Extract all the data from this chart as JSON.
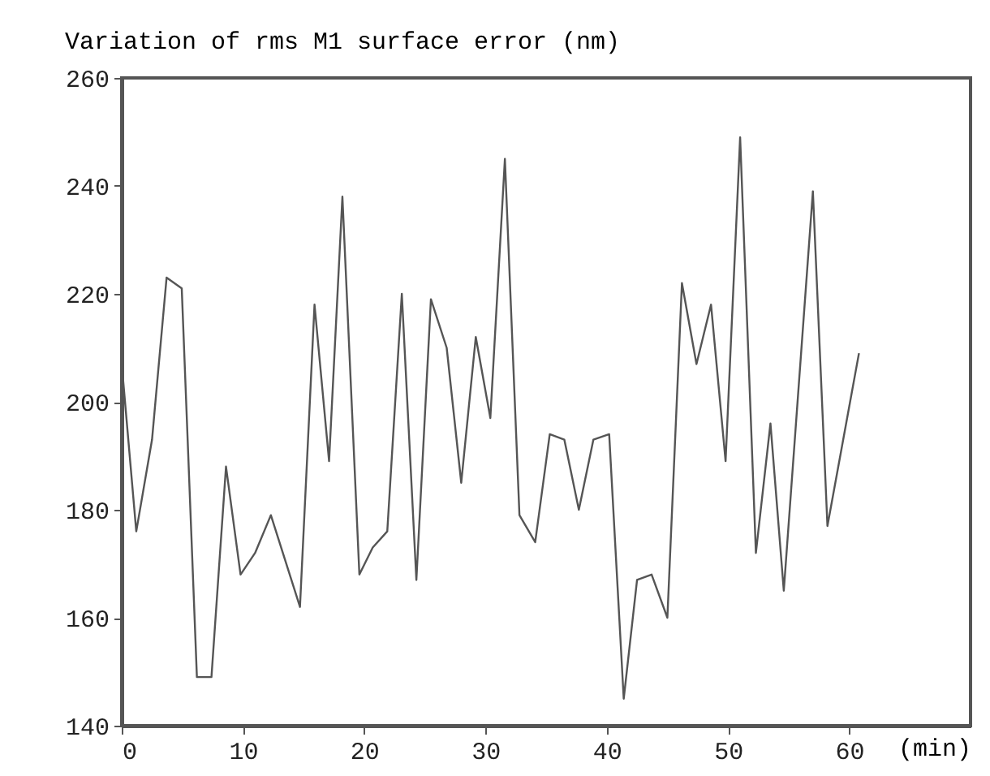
{
  "chart_data": {
    "type": "line",
    "title": "Variation of rms M1 surface error (nm)",
    "xlabel": "(min)",
    "x": [
      0,
      1.2,
      2.5,
      3.7,
      4.95,
      6.2,
      7.4,
      8.6,
      9.8,
      11.0,
      12.3,
      14.7,
      15.9,
      17.1,
      18.2,
      19.6,
      20.7,
      21.9,
      23.1,
      24.3,
      25.5,
      26.8,
      28.0,
      29.2,
      30.4,
      31.6,
      32.8,
      34.1,
      35.3,
      36.5,
      37.7,
      38.9,
      40.2,
      41.4,
      42.5,
      43.7,
      45.0,
      46.2,
      47.4,
      48.6,
      49.8,
      51.0,
      52.3,
      53.5,
      54.6,
      57.0,
      58.2,
      60.8
    ],
    "series": [
      {
        "color": "#555555",
        "values": [
          207,
          176,
          193,
          223,
          221,
          149,
          149,
          188,
          168,
          172,
          179,
          162,
          218,
          189,
          238,
          168,
          173,
          176,
          220,
          167,
          219,
          210,
          185,
          212,
          197,
          245,
          179,
          174,
          194,
          193,
          180,
          193,
          194,
          145,
          167,
          168,
          160,
          222,
          207,
          218,
          189,
          249,
          172,
          196,
          165,
          239,
          177,
          209
        ]
      }
    ],
    "xlim": [
      0,
      70
    ],
    "xticks": [
      0,
      10,
      20,
      30,
      40,
      50,
      60
    ],
    "ylim": [
      140,
      260
    ],
    "yticks": [
      140,
      160,
      180,
      200,
      220,
      240,
      260
    ],
    "grid": false,
    "marker": "none",
    "line_style": "solid"
  }
}
